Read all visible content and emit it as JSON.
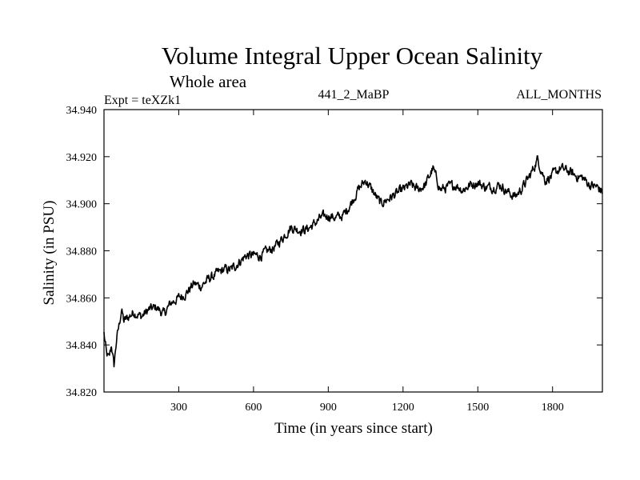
{
  "chart_data": {
    "type": "line",
    "title": "Volume Integral Upper Ocean Salinity",
    "subtitle": "Whole area",
    "annotations": {
      "experiment": "Expt = teXZk1",
      "run": "441_2_MaBP",
      "months": "ALL_MONTHS"
    },
    "xlabel": "Time (in years since start)",
    "ylabel": "Salinity (in PSU)",
    "xlim": [
      0,
      2000
    ],
    "ylim": [
      34.82,
      34.94
    ],
    "x_ticks": [
      300,
      600,
      900,
      1200,
      1500,
      1800
    ],
    "x_tick_labels": [
      "300",
      "600",
      "900",
      "1200",
      "1500",
      "1800"
    ],
    "y_ticks": [
      34.82,
      34.84,
      34.86,
      34.88,
      34.9,
      34.92,
      34.94
    ],
    "y_tick_labels": [
      "34.820",
      "34.840",
      "34.860",
      "34.880",
      "34.900",
      "34.920",
      "34.940"
    ],
    "grid": false,
    "series": [
      {
        "name": "Salinity",
        "color": "#000000",
        "x": [
          0,
          10,
          20,
          30,
          40,
          50,
          60,
          70,
          80,
          100,
          120,
          150,
          180,
          210,
          240,
          270,
          300,
          330,
          360,
          390,
          420,
          450,
          480,
          510,
          540,
          570,
          600,
          630,
          660,
          690,
          720,
          750,
          780,
          810,
          840,
          870,
          900,
          930,
          960,
          990,
          1020,
          1050,
          1080,
          1110,
          1140,
          1170,
          1200,
          1230,
          1260,
          1290,
          1320,
          1350,
          1380,
          1410,
          1440,
          1470,
          1500,
          1530,
          1560,
          1590,
          1620,
          1650,
          1680,
          1710,
          1740,
          1770,
          1800,
          1830,
          1860,
          1890,
          1920,
          1950,
          1980,
          2000
        ],
        "values": [
          34.845,
          34.836,
          34.834,
          34.84,
          34.831,
          34.842,
          34.848,
          34.855,
          34.85,
          34.852,
          34.854,
          34.852,
          34.855,
          34.856,
          34.853,
          34.858,
          34.86,
          34.862,
          34.866,
          34.865,
          34.868,
          34.87,
          34.872,
          34.872,
          34.875,
          34.878,
          34.878,
          34.878,
          34.88,
          34.882,
          34.886,
          34.89,
          34.889,
          34.889,
          34.891,
          34.894,
          34.895,
          34.894,
          34.895,
          34.9,
          34.906,
          34.91,
          34.905,
          34.9,
          34.902,
          34.904,
          34.906,
          34.908,
          34.906,
          34.908,
          34.915,
          34.906,
          34.907,
          34.908,
          34.906,
          34.908,
          34.909,
          34.907,
          34.907,
          34.908,
          34.905,
          34.903,
          34.907,
          34.912,
          34.919,
          34.91,
          34.912,
          34.915,
          34.914,
          34.912,
          34.911,
          34.908,
          34.907,
          34.905
        ]
      }
    ]
  }
}
